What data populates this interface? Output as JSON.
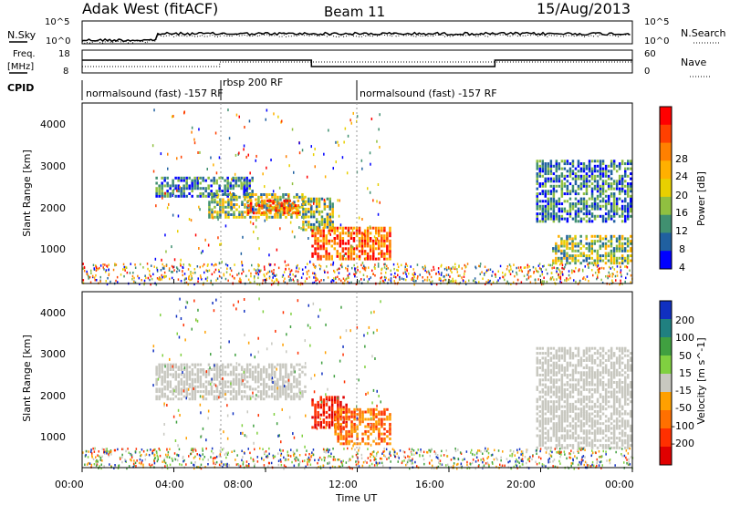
{
  "header": {
    "station": "Adak West (fitACF)",
    "beam": "Beam 11",
    "date": "15/Aug/2013"
  },
  "noise_panel": {
    "left_label": "N.Sky",
    "right_label": "N.Search",
    "left_ticks": [
      "10^5",
      "10^0"
    ],
    "right_ticks": [
      "10^5",
      "10^0"
    ]
  },
  "freq_panel": {
    "left_label_1": "Freq.",
    "left_label_2": "[MHz]",
    "right_label": "Nave",
    "left_ticks": [
      "18",
      "8"
    ],
    "right_ticks": [
      "60",
      "0"
    ]
  },
  "cpid_panel": {
    "label": "CPID",
    "segments": [
      {
        "text": "normalsound (fast) -157 RF",
        "start_hour": 0,
        "end_hour": 6
      },
      {
        "text": "rbsp 200 RF",
        "start_hour": 6,
        "end_hour": 12
      },
      {
        "text": "normalsound (fast) -157 RF",
        "start_hour": 12,
        "end_hour": 24
      }
    ]
  },
  "axes": {
    "xlabel": "Time UT",
    "ylabel": "Slant Range [km]",
    "x_ticks": [
      "00:00",
      "04:00",
      "08:00",
      "12:00",
      "16:00",
      "20:00",
      "00:00"
    ],
    "y_ticks": [
      "1000",
      "2000",
      "3000",
      "4000"
    ]
  },
  "power_scale": {
    "label": "Power [dB]",
    "ticks": [
      "28",
      "24",
      "20",
      "16",
      "12",
      "8",
      "4"
    ],
    "colors": [
      "#ff0000",
      "#ff4000",
      "#ff8000",
      "#ffb000",
      "#e8d000",
      "#90c040",
      "#409070",
      "#2060a0",
      "#0000ff"
    ]
  },
  "velocity_scale": {
    "label": "Velocity [m s^-1]",
    "ticks": [
      "200",
      "100",
      "50",
      "15",
      "-15",
      "-50",
      "-100",
      "-200"
    ],
    "colors": [
      "#1030c0",
      "#208080",
      "#40a040",
      "#80d040",
      "#c8c8c0",
      "#ffa000",
      "#ff7000",
      "#ff3000",
      "#e00000"
    ]
  },
  "chart_data": {
    "type": "heatmap",
    "x_range_hours": [
      0,
      24
    ],
    "y_range_km": [
      180,
      4500
    ],
    "power_regions": [
      {
        "t0": 3.2,
        "t1": 7.5,
        "r0": 2300,
        "r1": 2800,
        "level": "low"
      },
      {
        "t0": 5.5,
        "t1": 9.8,
        "r0": 1800,
        "r1": 2400,
        "level": "mid"
      },
      {
        "t0": 7.2,
        "t1": 9.5,
        "r0": 1900,
        "r1": 2250,
        "level": "high"
      },
      {
        "t0": 9.6,
        "t1": 11.0,
        "r0": 1500,
        "r1": 2300,
        "level": "mid"
      },
      {
        "t0": 10.0,
        "t1": 13.5,
        "r0": 800,
        "r1": 1600,
        "level": "high"
      },
      {
        "t0": 19.8,
        "t1": 24.0,
        "r0": 1700,
        "r1": 3200,
        "level": "low"
      },
      {
        "t0": 20.5,
        "t1": 24.0,
        "r0": 700,
        "r1": 1400,
        "level": "mid"
      }
    ],
    "velocity_regions": [
      {
        "t0": 3.2,
        "t1": 9.8,
        "r0": 1900,
        "r1": 2800,
        "level": "near_zero"
      },
      {
        "t0": 10.0,
        "t1": 11.6,
        "r0": 1200,
        "r1": 2000,
        "level": "strong_negative"
      },
      {
        "t0": 11.0,
        "t1": 13.5,
        "r0": 800,
        "r1": 1700,
        "level": "negative"
      },
      {
        "t0": 19.8,
        "t1": 24.0,
        "r0": 700,
        "r1": 3200,
        "level": "near_zero"
      }
    ]
  }
}
